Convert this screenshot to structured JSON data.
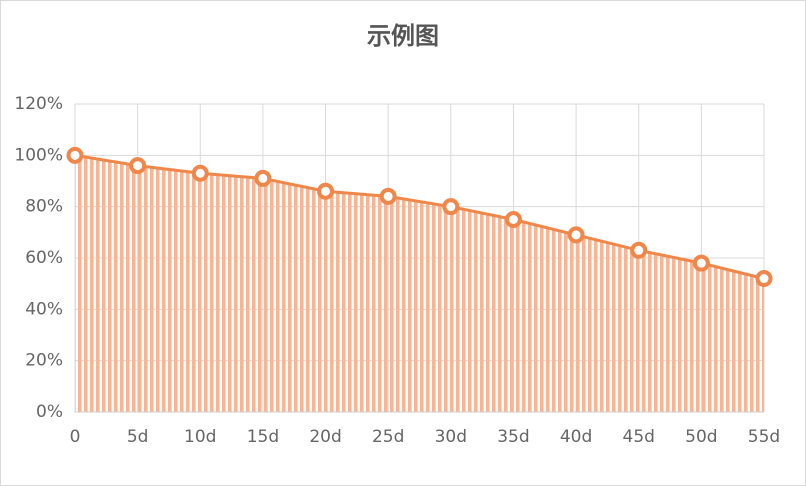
{
  "chart_data": {
    "type": "area",
    "title": "示例图",
    "categories": [
      "0",
      "5d",
      "10d",
      "15d",
      "20d",
      "25d",
      "30d",
      "35d",
      "40d",
      "45d",
      "50d",
      "55d"
    ],
    "values": [
      100,
      96,
      93,
      91,
      86,
      84,
      80,
      75,
      69,
      63,
      58,
      52
    ],
    "color": "#f0874a",
    "fill_color": "#f8b593",
    "ylim": [
      0,
      120
    ],
    "yticks": [
      {
        "value": 0,
        "label": "0%"
      },
      {
        "value": 20,
        "label": "20%"
      },
      {
        "value": 40,
        "label": "40%"
      },
      {
        "value": 60,
        "label": "60%"
      },
      {
        "value": 80,
        "label": "80%"
      },
      {
        "value": 100,
        "label": "100%"
      },
      {
        "value": 120,
        "label": "120%"
      }
    ],
    "grid": true
  }
}
